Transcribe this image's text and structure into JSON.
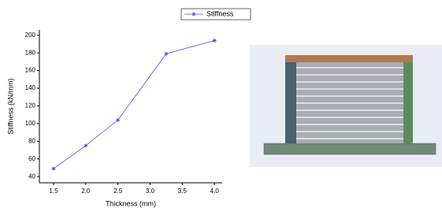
{
  "chart_data": {
    "type": "line",
    "x_label": "Thickness (mm)",
    "y_label": "Stiffness (kN/mm)",
    "series": [
      {
        "name": "Stiffness",
        "color": "#4a4aff",
        "x": [
          1.5,
          2.0,
          2.5,
          3.25,
          4.0
        ],
        "values": [
          49,
          75,
          104,
          179,
          194
        ]
      }
    ],
    "xlim": [
      1.28,
      4.12
    ],
    "ylim": [
      33,
      206
    ],
    "xticks": [
      1.5,
      {
        "value": 2,
        "label": "2.0"
      },
      2.5,
      {
        "value": 3,
        "label": "3.0"
      },
      3.5,
      {
        "value": 4,
        "label": "4.0"
      }
    ],
    "yticks": [
      40,
      60,
      80,
      100,
      120,
      140,
      160,
      180,
      200
    ],
    "legend": "top"
  }
}
